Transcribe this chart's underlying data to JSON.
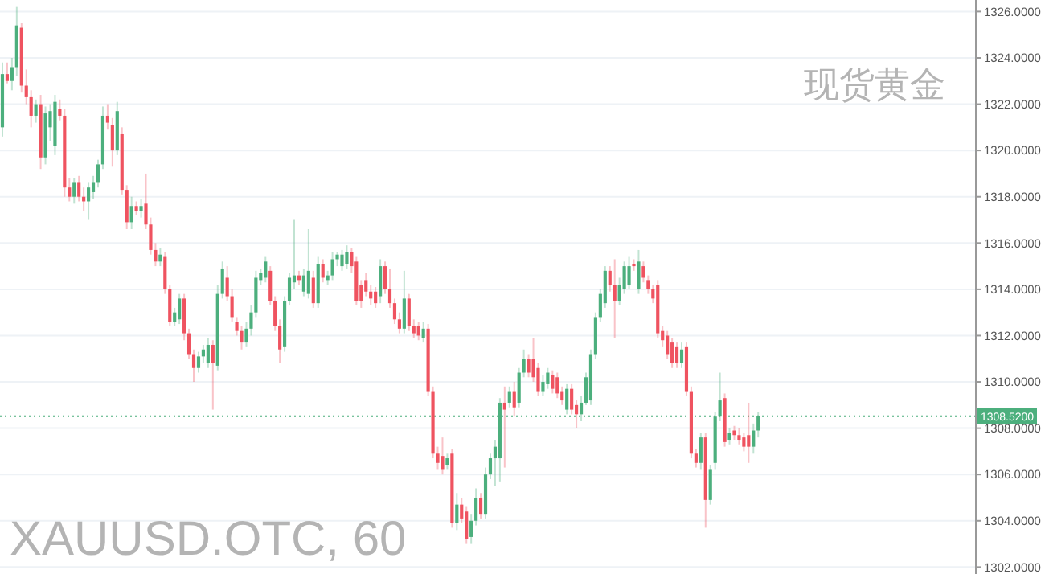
{
  "chart_data": {
    "type": "candlestick",
    "title": "XAUUSD.OTC, 60",
    "subtitle": "现货黄金",
    "ylim": [
      1301.7,
      1326.5
    ],
    "yticks": [
      {
        "value": 1302,
        "label": "1302.0000"
      },
      {
        "value": 1304,
        "label": "1304.0000"
      },
      {
        "value": 1306,
        "label": "1306.0000"
      },
      {
        "value": 1308,
        "label": "1308.0000"
      },
      {
        "value": 1310,
        "label": "1310.0000"
      },
      {
        "value": 1312,
        "label": "1312.0000"
      },
      {
        "value": 1314,
        "label": "1314.0000"
      },
      {
        "value": 1316,
        "label": "1316.0000"
      },
      {
        "value": 1318,
        "label": "1318.0000"
      },
      {
        "value": 1320,
        "label": "1320.0000"
      },
      {
        "value": 1322,
        "label": "1322.0000"
      },
      {
        "value": 1324,
        "label": "1324.0000"
      },
      {
        "value": 1326,
        "label": "1326.0000"
      }
    ],
    "grid": "y",
    "ref_lines": [
      {
        "axis": "y",
        "value": 1308.52,
        "label": "1308.5200",
        "color": "#4caf7d",
        "line_style": "dotted"
      }
    ],
    "categories": [
      null,
      null,
      null,
      null,
      null,
      null,
      null,
      null,
      null,
      null,
      null,
      null,
      null,
      null,
      null,
      null,
      null,
      null,
      null,
      null,
      null,
      null,
      null,
      null,
      null,
      null,
      null,
      null,
      null,
      null,
      null,
      null,
      null,
      null,
      null,
      null,
      null,
      null,
      null,
      null,
      null,
      null,
      null,
      null,
      null,
      null,
      null,
      null,
      null,
      null,
      null,
      null,
      null,
      null,
      null,
      null,
      null,
      null,
      null,
      null,
      null,
      null,
      null,
      null,
      null,
      null,
      null,
      null,
      null,
      null,
      null,
      null,
      null,
      null,
      null,
      null,
      null,
      null,
      null,
      null,
      null,
      null,
      null,
      null,
      null,
      null,
      null,
      null,
      null,
      null,
      null,
      null,
      null,
      null,
      null,
      null,
      null,
      null,
      null,
      null,
      null,
      null,
      null,
      null,
      null,
      null,
      null,
      null,
      null,
      null,
      null,
      null,
      null,
      null,
      null,
      null,
      null,
      null,
      null,
      null,
      null,
      null,
      null,
      null,
      null,
      null,
      null,
      null,
      null,
      null,
      null,
      null,
      null,
      null,
      null,
      null,
      null,
      null,
      null,
      null,
      null,
      null,
      null,
      null,
      null,
      null,
      null,
      null,
      null,
      null,
      null,
      null,
      null,
      null,
      null,
      null,
      null,
      null,
      null,
      null,
      null,
      null,
      null,
      null,
      null,
      null,
      null,
      null,
      null,
      null,
      null,
      null,
      null,
      null,
      null,
      null,
      null,
      null,
      null,
      null,
      null,
      null,
      null,
      null,
      null,
      null,
      null,
      null,
      null,
      null,
      null,
      null,
      null,
      null,
      null,
      null,
      null,
      null,
      null,
      null,
      null,
      null,
      null,
      null
    ],
    "ohlc": [
      [
        1321.0,
        1323.8,
        1320.6,
        1323.3
      ],
      [
        1323.3,
        1323.8,
        1322.9,
        1323.0
      ],
      [
        1323.0,
        1324.0,
        1322.6,
        1323.6
      ],
      [
        1323.6,
        1326.2,
        1323.2,
        1325.4
      ],
      [
        1325.3,
        1325.5,
        1322.5,
        1322.8
      ],
      [
        1322.8,
        1323.5,
        1322.0,
        1322.3
      ],
      [
        1322.3,
        1322.6,
        1321.0,
        1321.5
      ],
      [
        1321.5,
        1322.2,
        1321.2,
        1322.0
      ],
      [
        1322.0,
        1322.4,
        1319.2,
        1319.7
      ],
      [
        1319.7,
        1321.9,
        1319.4,
        1321.6
      ],
      [
        1321.0,
        1322.0,
        1320.4,
        1321.7
      ],
      [
        1320.2,
        1322.4,
        1319.8,
        1322.1
      ],
      [
        1321.8,
        1322.2,
        1321.3,
        1321.5
      ],
      [
        1321.5,
        1321.8,
        1318.0,
        1318.4
      ],
      [
        1318.4,
        1318.8,
        1317.8,
        1318.0
      ],
      [
        1318.0,
        1318.8,
        1317.7,
        1318.6
      ],
      [
        1318.6,
        1318.9,
        1317.8,
        1318.0
      ],
      [
        1318.0,
        1318.4,
        1317.4,
        1317.8
      ],
      [
        1317.8,
        1318.6,
        1317.0,
        1318.4
      ],
      [
        1318.2,
        1318.9,
        1317.9,
        1318.6
      ],
      [
        1318.6,
        1319.6,
        1318.4,
        1319.4
      ],
      [
        1319.4,
        1321.9,
        1319.2,
        1321.5
      ],
      [
        1321.5,
        1322.0,
        1320.9,
        1321.2
      ],
      [
        1321.1,
        1321.4,
        1319.3,
        1320.0
      ],
      [
        1320.0,
        1322.1,
        1319.8,
        1321.7
      ],
      [
        1320.7,
        1321.0,
        1318.1,
        1318.3
      ],
      [
        1318.3,
        1318.5,
        1316.6,
        1316.9
      ],
      [
        1316.9,
        1318.0,
        1316.6,
        1317.6
      ],
      [
        1317.6,
        1317.8,
        1317.2,
        1317.4
      ],
      [
        1317.4,
        1317.9,
        1317.1,
        1317.6
      ],
      [
        1317.7,
        1319.0,
        1316.6,
        1316.8
      ],
      [
        1316.8,
        1317.1,
        1315.5,
        1315.7
      ],
      [
        1315.7,
        1316.0,
        1315.0,
        1315.2
      ],
      [
        1315.2,
        1315.8,
        1315.0,
        1315.5
      ],
      [
        1315.4,
        1315.6,
        1313.8,
        1314.0
      ],
      [
        1314.0,
        1314.2,
        1312.4,
        1312.6
      ],
      [
        1312.6,
        1313.2,
        1312.4,
        1313.0
      ],
      [
        1312.7,
        1313.8,
        1312.5,
        1313.6
      ],
      [
        1313.6,
        1313.8,
        1311.8,
        1312.1
      ],
      [
        1312.1,
        1312.3,
        1311.0,
        1311.2
      ],
      [
        1311.2,
        1311.4,
        1310.0,
        1310.6
      ],
      [
        1310.6,
        1311.3,
        1310.4,
        1311.1
      ],
      [
        1311.1,
        1311.6,
        1310.8,
        1311.4
      ],
      [
        1310.8,
        1311.9,
        1310.6,
        1311.6
      ],
      [
        1311.6,
        1311.8,
        1308.8,
        1310.8
      ],
      [
        1310.7,
        1314.2,
        1310.5,
        1313.8
      ],
      [
        1313.8,
        1315.2,
        1313.6,
        1314.9
      ],
      [
        1314.5,
        1315.0,
        1313.5,
        1313.7
      ],
      [
        1313.7,
        1314.0,
        1312.6,
        1312.8
      ],
      [
        1312.6,
        1312.8,
        1312.0,
        1312.2
      ],
      [
        1312.2,
        1312.4,
        1311.4,
        1311.7
      ],
      [
        1311.7,
        1312.6,
        1311.5,
        1312.3
      ],
      [
        1312.3,
        1313.3,
        1312.0,
        1313.0
      ],
      [
        1313.0,
        1314.8,
        1312.8,
        1314.5
      ],
      [
        1314.4,
        1314.9,
        1314.2,
        1314.7
      ],
      [
        1314.5,
        1315.4,
        1314.3,
        1315.2
      ],
      [
        1314.8,
        1315.0,
        1313.3,
        1313.5
      ],
      [
        1313.5,
        1313.7,
        1312.2,
        1312.4
      ],
      [
        1312.4,
        1312.7,
        1310.8,
        1311.4
      ],
      [
        1311.5,
        1313.7,
        1311.3,
        1313.5
      ],
      [
        1313.5,
        1314.7,
        1313.3,
        1314.5
      ],
      [
        1314.3,
        1317.0,
        1314.0,
        1314.6
      ],
      [
        1314.6,
        1314.8,
        1314.2,
        1314.4
      ],
      [
        1313.9,
        1314.9,
        1313.7,
        1314.6
      ],
      [
        1313.8,
        1316.6,
        1313.6,
        1314.8
      ],
      [
        1314.5,
        1314.8,
        1313.2,
        1313.4
      ],
      [
        1313.4,
        1315.4,
        1313.2,
        1315.1
      ],
      [
        1315.1,
        1315.3,
        1314.3,
        1314.5
      ],
      [
        1314.4,
        1314.8,
        1314.2,
        1314.6
      ],
      [
        1314.6,
        1315.6,
        1314.4,
        1315.3
      ],
      [
        1315.3,
        1315.6,
        1315.0,
        1315.5
      ],
      [
        1315.0,
        1315.7,
        1314.8,
        1315.5
      ],
      [
        1315.1,
        1315.9,
        1314.9,
        1315.6
      ],
      [
        1315.6,
        1315.8,
        1314.7,
        1315.0
      ],
      [
        1315.2,
        1315.4,
        1313.3,
        1313.5
      ],
      [
        1314.2,
        1314.4,
        1313.2,
        1313.5
      ],
      [
        1314.4,
        1314.7,
        1313.7,
        1313.9
      ],
      [
        1313.9,
        1314.2,
        1313.3,
        1313.6
      ],
      [
        1313.9,
        1314.1,
        1313.2,
        1313.4
      ],
      [
        1313.7,
        1315.3,
        1313.4,
        1315.0
      ],
      [
        1315.0,
        1315.2,
        1313.8,
        1314.0
      ],
      [
        1314.0,
        1314.9,
        1313.2,
        1313.4
      ],
      [
        1313.4,
        1313.6,
        1312.5,
        1312.7
      ],
      [
        1312.7,
        1313.0,
        1312.1,
        1312.3
      ],
      [
        1312.3,
        1314.8,
        1312.1,
        1313.6
      ],
      [
        1313.6,
        1313.8,
        1312.2,
        1312.4
      ],
      [
        1312.4,
        1312.7,
        1311.9,
        1312.1
      ],
      [
        1312.4,
        1312.6,
        1311.8,
        1312.0
      ],
      [
        1311.9,
        1312.6,
        1311.7,
        1312.3
      ],
      [
        1312.3,
        1312.5,
        1309.4,
        1309.6
      ],
      [
        1309.6,
        1309.8,
        1306.7,
        1306.9
      ],
      [
        1306.9,
        1307.2,
        1306.2,
        1306.5
      ],
      [
        1306.8,
        1307.6,
        1306.0,
        1306.2
      ],
      [
        1306.4,
        1306.9,
        1306.2,
        1306.7
      ],
      [
        1306.9,
        1307.1,
        1303.7,
        1303.9
      ],
      [
        1303.9,
        1305.2,
        1303.6,
        1304.7
      ],
      [
        1304.7,
        1305.0,
        1303.9,
        1304.1
      ],
      [
        1304.4,
        1304.6,
        1303.0,
        1303.2
      ],
      [
        1303.3,
        1304.3,
        1303.0,
        1304.0
      ],
      [
        1304.0,
        1305.4,
        1303.8,
        1305.0
      ],
      [
        1305.0,
        1305.2,
        1304.1,
        1304.3
      ],
      [
        1304.3,
        1306.3,
        1304.1,
        1306.0
      ],
      [
        1306.0,
        1306.9,
        1305.8,
        1306.7
      ],
      [
        1306.7,
        1307.5,
        1305.5,
        1307.2
      ],
      [
        1306.7,
        1309.3,
        1305.7,
        1309.1
      ],
      [
        1309.1,
        1309.8,
        1306.3,
        1308.8
      ],
      [
        1309.1,
        1309.8,
        1308.9,
        1309.6
      ],
      [
        1309.6,
        1310.0,
        1308.5,
        1308.9
      ],
      [
        1309.1,
        1310.6,
        1308.9,
        1310.4
      ],
      [
        1310.4,
        1311.4,
        1310.2,
        1311.0
      ],
      [
        1311.0,
        1311.2,
        1310.2,
        1310.4
      ],
      [
        1311.0,
        1311.9,
        1310.0,
        1310.2
      ],
      [
        1310.6,
        1310.8,
        1309.4,
        1309.6
      ],
      [
        1309.6,
        1310.3,
        1309.4,
        1310.0
      ],
      [
        1309.9,
        1310.6,
        1309.7,
        1310.4
      ],
      [
        1310.3,
        1310.5,
        1309.5,
        1309.7
      ],
      [
        1310.2,
        1310.4,
        1309.3,
        1309.5
      ],
      [
        1309.6,
        1309.8,
        1309.0,
        1309.2
      ],
      [
        1308.8,
        1309.9,
        1308.6,
        1309.7
      ],
      [
        1309.7,
        1309.9,
        1308.6,
        1308.8
      ],
      [
        1309.0,
        1309.2,
        1308.0,
        1308.6
      ],
      [
        1308.6,
        1309.4,
        1308.3,
        1309.1
      ],
      [
        1309.1,
        1310.4,
        1309.0,
        1310.2
      ],
      [
        1309.2,
        1311.4,
        1309.0,
        1311.2
      ],
      [
        1311.2,
        1313.0,
        1311.0,
        1312.8
      ],
      [
        1312.8,
        1314.0,
        1312.6,
        1313.8
      ],
      [
        1313.4,
        1315.0,
        1313.2,
        1314.8
      ],
      [
        1314.8,
        1315.0,
        1313.9,
        1314.2
      ],
      [
        1314.2,
        1315.3,
        1311.9,
        1313.5
      ],
      [
        1313.5,
        1314.5,
        1313.3,
        1314.2
      ],
      [
        1314.0,
        1315.2,
        1313.8,
        1315.0
      ],
      [
        1314.2,
        1315.4,
        1314.0,
        1315.0
      ],
      [
        1315.1,
        1315.3,
        1314.8,
        1315.0
      ],
      [
        1314.0,
        1315.7,
        1313.8,
        1315.2
      ],
      [
        1315.0,
        1315.2,
        1314.3,
        1314.5
      ],
      [
        1314.4,
        1314.6,
        1313.8,
        1314.0
      ],
      [
        1314.0,
        1314.2,
        1313.4,
        1313.6
      ],
      [
        1314.2,
        1314.4,
        1311.9,
        1312.1
      ],
      [
        1312.2,
        1312.4,
        1311.5,
        1311.8
      ],
      [
        1312.0,
        1312.2,
        1311.0,
        1311.2
      ],
      [
        1311.7,
        1311.9,
        1310.6,
        1310.8
      ],
      [
        1311.5,
        1311.7,
        1310.6,
        1310.8
      ],
      [
        1310.8,
        1311.7,
        1310.6,
        1311.4
      ],
      [
        1311.5,
        1311.7,
        1309.4,
        1309.6
      ],
      [
        1309.6,
        1309.8,
        1306.7,
        1306.9
      ],
      [
        1306.9,
        1307.1,
        1306.3,
        1306.5
      ],
      [
        1306.5,
        1307.8,
        1306.2,
        1307.6
      ],
      [
        1307.6,
        1307.8,
        1303.7,
        1304.9
      ],
      [
        1304.9,
        1306.4,
        1304.7,
        1306.2
      ],
      [
        1306.5,
        1308.7,
        1306.2,
        1308.5
      ],
      [
        1308.5,
        1310.4,
        1308.3,
        1309.2
      ],
      [
        1309.3,
        1309.5,
        1307.2,
        1307.4
      ],
      [
        1307.5,
        1308.0,
        1307.3,
        1307.8
      ],
      [
        1307.9,
        1308.1,
        1307.5,
        1307.7
      ],
      [
        1307.7,
        1308.0,
        1307.3,
        1307.5
      ],
      [
        1307.6,
        1307.8,
        1307.0,
        1307.2
      ],
      [
        1307.7,
        1309.1,
        1306.5,
        1307.2
      ],
      [
        1307.2,
        1308.2,
        1306.9,
        1307.9
      ],
      [
        1307.9,
        1308.7,
        1307.6,
        1308.52
      ],
      null,
      null,
      null,
      null,
      null,
      null,
      null,
      null,
      null,
      null,
      null,
      null,
      null,
      null,
      null,
      null,
      null,
      null,
      null,
      null,
      null,
      null,
      null,
      null,
      null,
      null,
      null,
      null,
      null,
      null,
      null,
      null,
      null,
      null,
      null,
      null,
      null,
      null,
      null,
      null,
      null,
      null,
      null,
      null,
      null
    ]
  }
}
